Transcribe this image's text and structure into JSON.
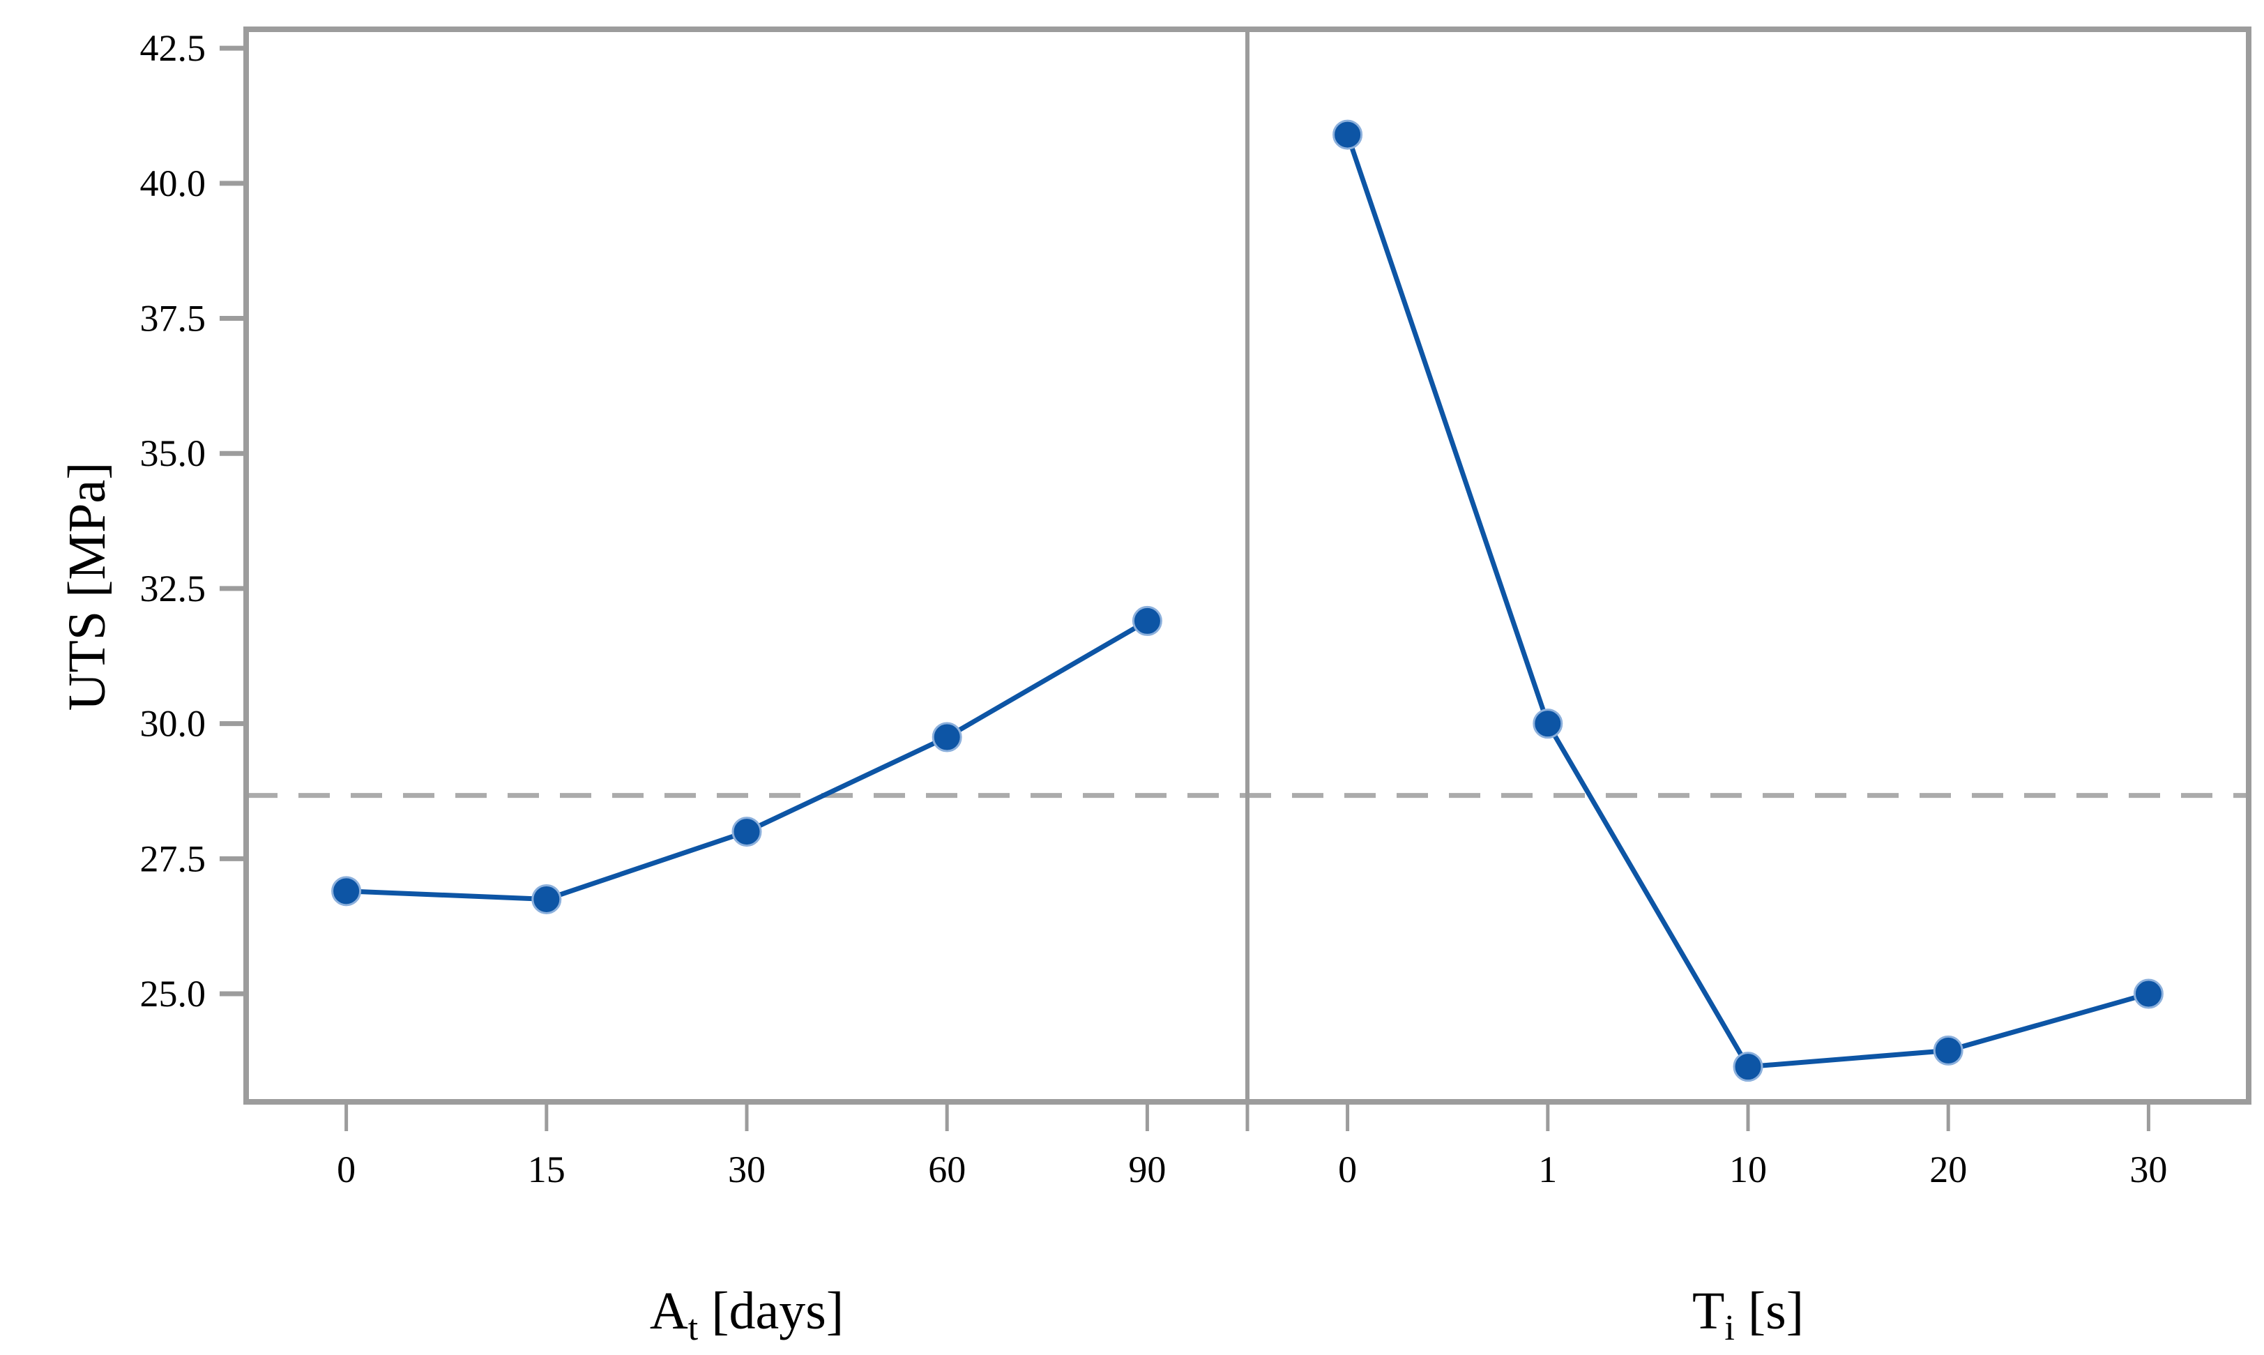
{
  "figure": {
    "background": "#ffffff",
    "axis_color": "#9c9c9c",
    "tick_color": "#9c9c9c",
    "series_color": "#0d55a5",
    "marker_halo_color": "#8cb0dc",
    "reference_line_color": "#ababab",
    "text_color": "#000000"
  },
  "chart_data": {
    "type": "line",
    "description": "Main effects plot, two panels sharing one y axis, each with a fitted means line, round markers and a dashed grand-mean reference line",
    "ylabel": "UTS [MPa]",
    "ylim": [
      23.0,
      42.85
    ],
    "yticks": [
      "25.0",
      "27.5",
      "30.0",
      "32.5",
      "35.0",
      "37.5",
      "40.0",
      "42.5"
    ],
    "reference_line": {
      "value": 28.67,
      "style": "dashed"
    },
    "grid": false,
    "legend": false,
    "panels": [
      {
        "xlabel": "At [days]",
        "xlabel_parts": [
          {
            "text": "A",
            "sub": false
          },
          {
            "text": "t",
            "sub": true
          },
          {
            "text": " [days]",
            "sub": false
          }
        ],
        "categories": [
          "0",
          "15",
          "30",
          "60",
          "90"
        ],
        "values": [
          26.9,
          26.75,
          28.0,
          29.75,
          31.9
        ]
      },
      {
        "xlabel": "Ti [s]",
        "xlabel_parts": [
          {
            "text": "T",
            "sub": false
          },
          {
            "text": "i",
            "sub": true
          },
          {
            "text": " [s]",
            "sub": false
          }
        ],
        "categories": [
          "0",
          "1",
          "10",
          "20",
          "30"
        ],
        "values": [
          40.9,
          30.0,
          23.65,
          23.95,
          25.0
        ]
      }
    ]
  }
}
